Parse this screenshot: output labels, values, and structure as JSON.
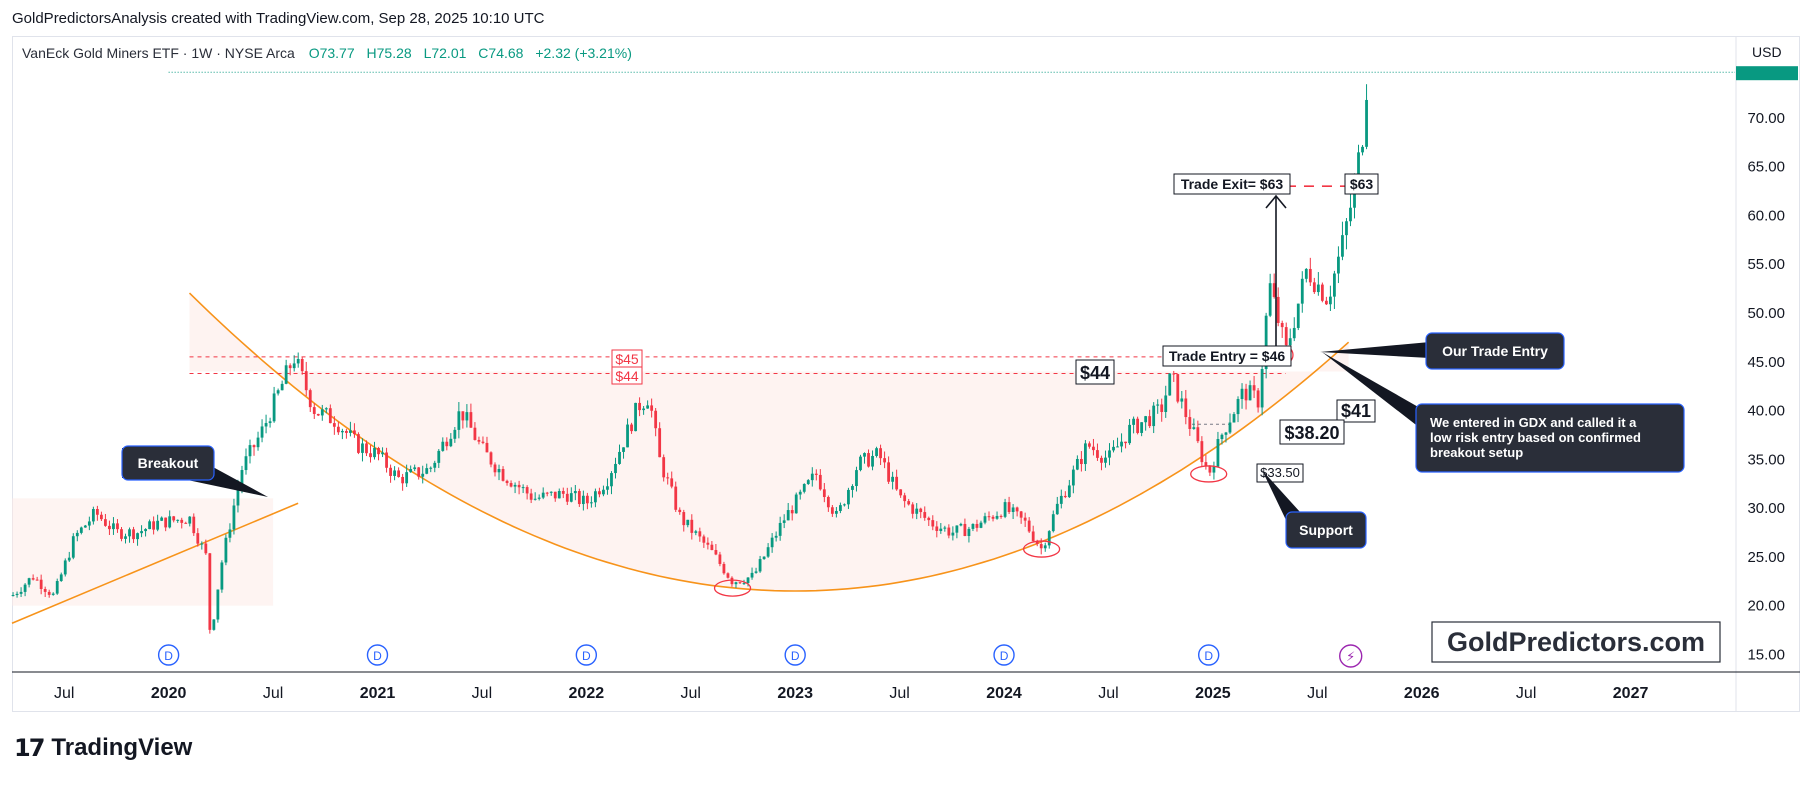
{
  "header": {
    "credit": "GoldPredictorsAnalysis created with TradingView.com, Sep 28, 2025 10:10 UTC"
  },
  "legend": {
    "symbol": "VanEck Gold Miners ETF · 1W · NYSE Arca",
    "open": "O73.77",
    "high": "H75.28",
    "low": "L72.01",
    "close": "C74.68",
    "change": "+2.32 (+3.21%)"
  },
  "axis": {
    "currency": "USD"
  },
  "footer": {
    "brand": "TradingView"
  },
  "colors": {
    "up": "#089981",
    "down": "#f23645",
    "arc": "#f7931a",
    "annot": "#131722",
    "dashed": "#f23645",
    "div_icon": "#2962ff",
    "flash_icon": "#9c27b0"
  },
  "chart_data": {
    "type": "candlestick",
    "title": "VanEck Gold Miners ETF · 1W · NYSE Arca",
    "y_ticks": [
      15,
      20,
      25,
      30,
      35,
      40,
      45,
      50,
      55,
      60,
      65,
      70
    ],
    "y_tick_labels": [
      "15.00",
      "20.00",
      "25.00",
      "30.00",
      "35.00",
      "40.00",
      "45.00",
      "50.00",
      "55.00",
      "60.00",
      "65.00",
      "70.00"
    ],
    "ylim": [
      13.2,
      74.7
    ],
    "x_tick_labels": [
      "Jul",
      "2020",
      "Jul",
      "2021",
      "Jul",
      "2022",
      "Jul",
      "2023",
      "Jul",
      "2024",
      "Jul",
      "2025",
      "Jul",
      "2026",
      "Jul",
      "2027"
    ],
    "x_tick_dates": [
      2019.5,
      2020.0,
      2020.5,
      2021.0,
      2021.5,
      2022.0,
      2022.5,
      2023.0,
      2023.5,
      2024.0,
      2024.5,
      2025.0,
      2025.5,
      2026.0,
      2026.5,
      2027.0
    ],
    "xlim": [
      2019.25,
      2027.5
    ],
    "last_price": 74.68,
    "price_path": [
      [
        2019.25,
        21.0
      ],
      [
        2019.35,
        23.0
      ],
      [
        2019.45,
        21.0
      ],
      [
        2019.55,
        27.0
      ],
      [
        2019.65,
        29.5
      ],
      [
        2019.75,
        27.5
      ],
      [
        2019.85,
        27.5
      ],
      [
        2019.95,
        28.5
      ],
      [
        2020.1,
        29.0
      ],
      [
        2020.18,
        25.0
      ],
      [
        2020.2,
        16.5
      ],
      [
        2020.25,
        24.0
      ],
      [
        2020.35,
        34.0
      ],
      [
        2020.45,
        38.0
      ],
      [
        2020.55,
        43.0
      ],
      [
        2020.6,
        45.5
      ],
      [
        2020.7,
        40.0
      ],
      [
        2020.8,
        39.0
      ],
      [
        2020.9,
        36.5
      ],
      [
        2021.0,
        35.5
      ],
      [
        2021.1,
        33.0
      ],
      [
        2021.25,
        34.0
      ],
      [
        2021.4,
        40.0
      ],
      [
        2021.5,
        36.0
      ],
      [
        2021.6,
        33.5
      ],
      [
        2021.75,
        31.0
      ],
      [
        2021.9,
        31.5
      ],
      [
        2022.0,
        30.5
      ],
      [
        2022.1,
        33.0
      ],
      [
        2022.25,
        40.5
      ],
      [
        2022.3,
        41.5
      ],
      [
        2022.35,
        35.0
      ],
      [
        2022.45,
        29.0
      ],
      [
        2022.6,
        25.5
      ],
      [
        2022.7,
        22.5
      ],
      [
        2022.8,
        23.0
      ],
      [
        2022.95,
        29.0
      ],
      [
        2023.1,
        33.5
      ],
      [
        2023.2,
        29.0
      ],
      [
        2023.3,
        34.5
      ],
      [
        2023.4,
        35.5
      ],
      [
        2023.5,
        31.0
      ],
      [
        2023.65,
        28.5
      ],
      [
        2023.75,
        27.5
      ],
      [
        2023.85,
        28.0
      ],
      [
        2024.0,
        30.0
      ],
      [
        2024.1,
        28.5
      ],
      [
        2024.18,
        25.8
      ],
      [
        2024.25,
        30.0
      ],
      [
        2024.4,
        36.5
      ],
      [
        2024.5,
        35.0
      ],
      [
        2024.6,
        38.0
      ],
      [
        2024.75,
        40.0
      ],
      [
        2024.8,
        43.5
      ],
      [
        2024.9,
        38.0
      ],
      [
        2024.98,
        33.5
      ],
      [
        2025.05,
        38.0
      ],
      [
        2025.15,
        42.0
      ],
      [
        2025.22,
        41.0
      ],
      [
        2025.27,
        53.0
      ],
      [
        2025.35,
        46.0
      ],
      [
        2025.45,
        54.5
      ],
      [
        2025.55,
        51.5
      ],
      [
        2025.62,
        57.0
      ],
      [
        2025.68,
        63.0
      ],
      [
        2025.72,
        69.0
      ],
      [
        2025.74,
        74.68
      ]
    ],
    "annotations": {
      "breakout": "Breakout",
      "our_trade_entry": "Our Trade Entry",
      "note": [
        "We entered in GDX and called it a",
        "low risk entry based on confirmed",
        "breakout setup"
      ],
      "support": "Support",
      "trade_exit": "Trade Exit= $63",
      "trade_entry": "Trade Entry = $46",
      "label_45": "$45",
      "label_44_red": "$44",
      "label_44": "$44",
      "label_63": "$63",
      "label_41": "$41",
      "label_38": "$38.20",
      "label_33": "$33.50",
      "watermark": "GoldPredictors.com"
    },
    "levels": {
      "resistance_45": 45.5,
      "resistance_44": 43.8,
      "exit": 63.0,
      "entry": 46.0
    }
  }
}
